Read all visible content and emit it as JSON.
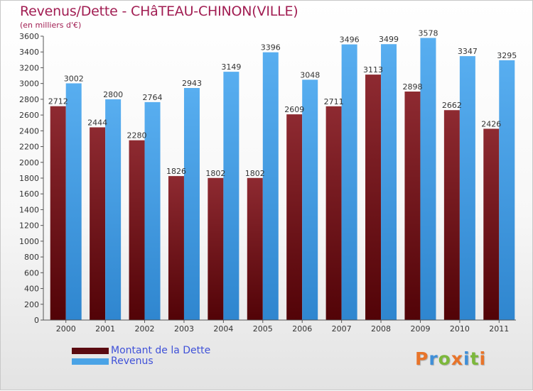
{
  "title": "Revenus/Dette - CHâTEAU-CHINON(VILLE)",
  "subtitle": "(en milliers d'€)",
  "colors": {
    "dette": "#7b1b22",
    "revenus": "#4aa3e6"
  },
  "legend": {
    "items": [
      {
        "label": "Montant de la Dette",
        "color": "#5a0a10"
      },
      {
        "label": "Revenus",
        "color": "#4aa3e6"
      }
    ]
  },
  "logo": {
    "letters": [
      {
        "ch": "P",
        "color": "#e8742a"
      },
      {
        "ch": "r",
        "color": "#3f8fd8"
      },
      {
        "ch": "o",
        "color": "#7cb83b"
      },
      {
        "ch": "x",
        "color": "#e8742a"
      },
      {
        "ch": "i",
        "color": "#3f8fd8"
      },
      {
        "ch": "t",
        "color": "#7cb83b"
      },
      {
        "ch": "i",
        "color": "#e8742a"
      }
    ]
  },
  "chart_data": {
    "type": "bar",
    "categories": [
      "2000",
      "2001",
      "2002",
      "2003",
      "2004",
      "2005",
      "2006",
      "2007",
      "2008",
      "2009",
      "2010",
      "2011"
    ],
    "series": [
      {
        "name": "Montant de la Dette",
        "values": [
          2712,
          2444,
          2280,
          1826,
          1802,
          1802,
          2609,
          2711,
          3113,
          2898,
          2662,
          2426
        ]
      },
      {
        "name": "Revenus",
        "values": [
          3002,
          2800,
          2764,
          2943,
          3149,
          3396,
          3048,
          3496,
          3499,
          3578,
          3347,
          3295
        ]
      }
    ],
    "title": "Revenus/Dette - CHâTEAU-CHINON(VILLE)",
    "ylabel": "(en milliers d'€)",
    "ylim": [
      0,
      3600
    ],
    "yticks": [
      0,
      200,
      400,
      600,
      800,
      1000,
      1200,
      1400,
      1600,
      1800,
      2000,
      2200,
      2400,
      2600,
      2800,
      3000,
      3200,
      3400,
      3600
    ],
    "grid": false,
    "legend_position": "bottom-left"
  }
}
